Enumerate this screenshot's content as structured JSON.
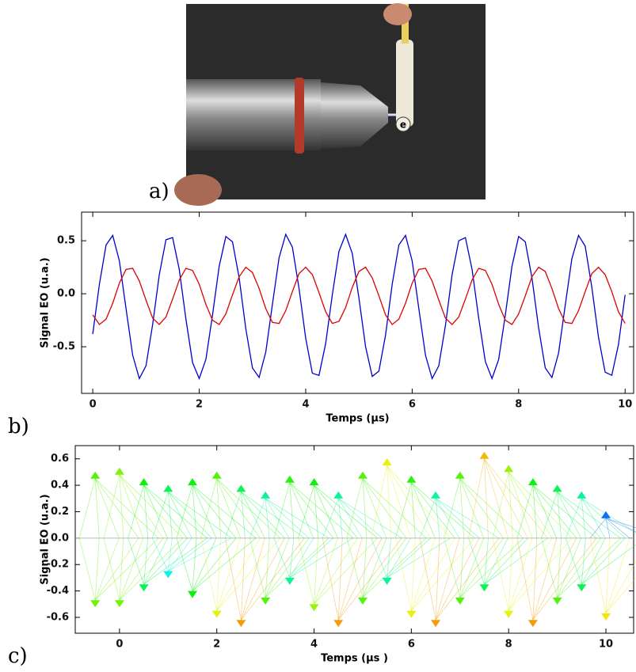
{
  "photo": {
    "label": "a)",
    "cap_text": "e"
  },
  "chart_data": [
    {
      "type": "line",
      "panel_label": "b)",
      "xlabel": "Temps (µs)",
      "ylabel": "Signal EO (u.a.)",
      "xlim": [
        -0.21,
        10.16
      ],
      "ylim": [
        -0.94,
        0.77
      ],
      "xticks": [
        0,
        2,
        4,
        6,
        8,
        10
      ],
      "yticks": [
        -0.5,
        {
          "value": 0,
          "label": "0.0"
        },
        0.5
      ],
      "x": [
        0,
        0.125,
        0.25,
        0.375,
        0.5,
        0.625,
        0.75,
        0.875,
        1,
        1.125,
        1.25,
        1.375,
        1.5,
        1.625,
        1.75,
        1.875,
        2,
        2.125,
        2.25,
        2.375,
        2.5,
        2.625,
        2.75,
        2.875,
        3,
        3.125,
        3.25,
        3.375,
        3.5,
        3.625,
        3.75,
        3.875,
        4,
        4.125,
        4.25,
        4.375,
        4.5,
        4.625,
        4.75,
        4.875,
        5,
        5.125,
        5.25,
        5.375,
        5.5,
        5.625,
        5.75,
        5.875,
        6,
        6.125,
        6.25,
        6.375,
        6.5,
        6.625,
        6.75,
        6.875,
        7,
        7.125,
        7.25,
        7.375,
        7.5,
        7.625,
        7.75,
        7.875,
        8,
        8.125,
        8.25,
        8.375,
        8.5,
        8.625,
        8.75,
        8.875,
        9,
        9.125,
        9.25,
        9.375,
        9.5,
        9.625,
        9.75,
        9.875,
        10
      ],
      "series": [
        {
          "color": "#0000cc",
          "values": [
            -0.38,
            0.09,
            0.46,
            0.55,
            0.31,
            -0.14,
            -0.58,
            -0.8,
            -0.68,
            -0.29,
            0.18,
            0.51,
            0.53,
            0.23,
            -0.24,
            -0.65,
            -0.8,
            -0.62,
            -0.2,
            0.26,
            0.54,
            0.49,
            0.15,
            -0.33,
            -0.7,
            -0.79,
            -0.55,
            -0.1,
            0.34,
            0.56,
            0.44,
            0.05,
            -0.42,
            -0.75,
            -0.77,
            -0.47,
            -0.01,
            0.4,
            0.56,
            0.38,
            -0.04,
            -0.5,
            -0.78,
            -0.73,
            -0.39,
            0.09,
            0.46,
            0.55,
            0.31,
            -0.14,
            -0.58,
            -0.8,
            -0.68,
            -0.3,
            0.18,
            0.5,
            0.53,
            0.23,
            -0.23,
            -0.64,
            -0.8,
            -0.62,
            -0.2,
            0.26,
            0.54,
            0.49,
            0.15,
            -0.32,
            -0.7,
            -0.79,
            -0.56,
            -0.11,
            0.33,
            0.55,
            0.45,
            0.06,
            -0.41,
            -0.74,
            -0.77,
            -0.48,
            -0.01
          ]
        },
        {
          "color": "#dd0000",
          "values": [
            -0.2,
            -0.29,
            -0.24,
            -0.09,
            0.1,
            0.23,
            0.24,
            0.12,
            -0.06,
            -0.23,
            -0.29,
            -0.22,
            -0.05,
            0.13,
            0.24,
            0.22,
            0.09,
            -0.1,
            -0.25,
            -0.29,
            -0.19,
            -0.01,
            0.16,
            0.25,
            0.2,
            0.05,
            -0.14,
            -0.27,
            -0.28,
            -0.16,
            0.02,
            0.19,
            0.25,
            0.18,
            0.01,
            -0.17,
            -0.28,
            -0.26,
            -0.13,
            0.06,
            0.21,
            0.25,
            0.15,
            -0.02,
            -0.2,
            -0.29,
            -0.24,
            -0.09,
            0.1,
            0.23,
            0.24,
            0.12,
            -0.06,
            -0.23,
            -0.29,
            -0.22,
            -0.05,
            0.13,
            0.24,
            0.22,
            0.09,
            -0.1,
            -0.25,
            -0.29,
            -0.19,
            -0.02,
            0.16,
            0.25,
            0.21,
            0.05,
            -0.14,
            -0.27,
            -0.28,
            -0.16,
            0.02,
            0.19,
            0.25,
            0.18,
            0.02,
            -0.17,
            -0.28
          ]
        }
      ]
    },
    {
      "type": "vector",
      "panel_label": "c)",
      "xlabel": "Temps (µs )",
      "ylabel": "Signal EO (u.a.)",
      "xlim": [
        -0.91,
        10.57
      ],
      "ylim": [
        -0.72,
        0.7
      ],
      "xticks": [
        0,
        2,
        4,
        6,
        8,
        10
      ],
      "yticks": [
        -0.6,
        -0.4,
        -0.2,
        {
          "value": 0,
          "label": "0.0"
        },
        0.2,
        0.4,
        0.6
      ],
      "x": [
        -0.5,
        0,
        0.5,
        1,
        1.5,
        2,
        2.5,
        3,
        3.5,
        4,
        4.5,
        5,
        5.5,
        6,
        6.5,
        7,
        7.5,
        8,
        8.5,
        9,
        9.5,
        10
      ],
      "series": [
        {
          "values": [
            0.45,
            0.48,
            0.4,
            0.35,
            0.4,
            0.45,
            0.35,
            0.3,
            0.42,
            0.4,
            0.3,
            0.45,
            0.55,
            0.42,
            0.3,
            0.45,
            0.6,
            0.5,
            0.4,
            0.35,
            0.3,
            0.15
          ]
        },
        {
          "values": [
            -0.47,
            -0.47,
            -0.35,
            -0.25,
            -0.4,
            -0.55,
            -0.62,
            -0.45,
            -0.3,
            -0.5,
            -0.62,
            -0.45,
            -0.3,
            -0.55,
            -0.62,
            -0.45,
            -0.35,
            -0.55,
            -0.62,
            -0.45,
            -0.35,
            -0.57
          ]
        }
      ]
    }
  ]
}
